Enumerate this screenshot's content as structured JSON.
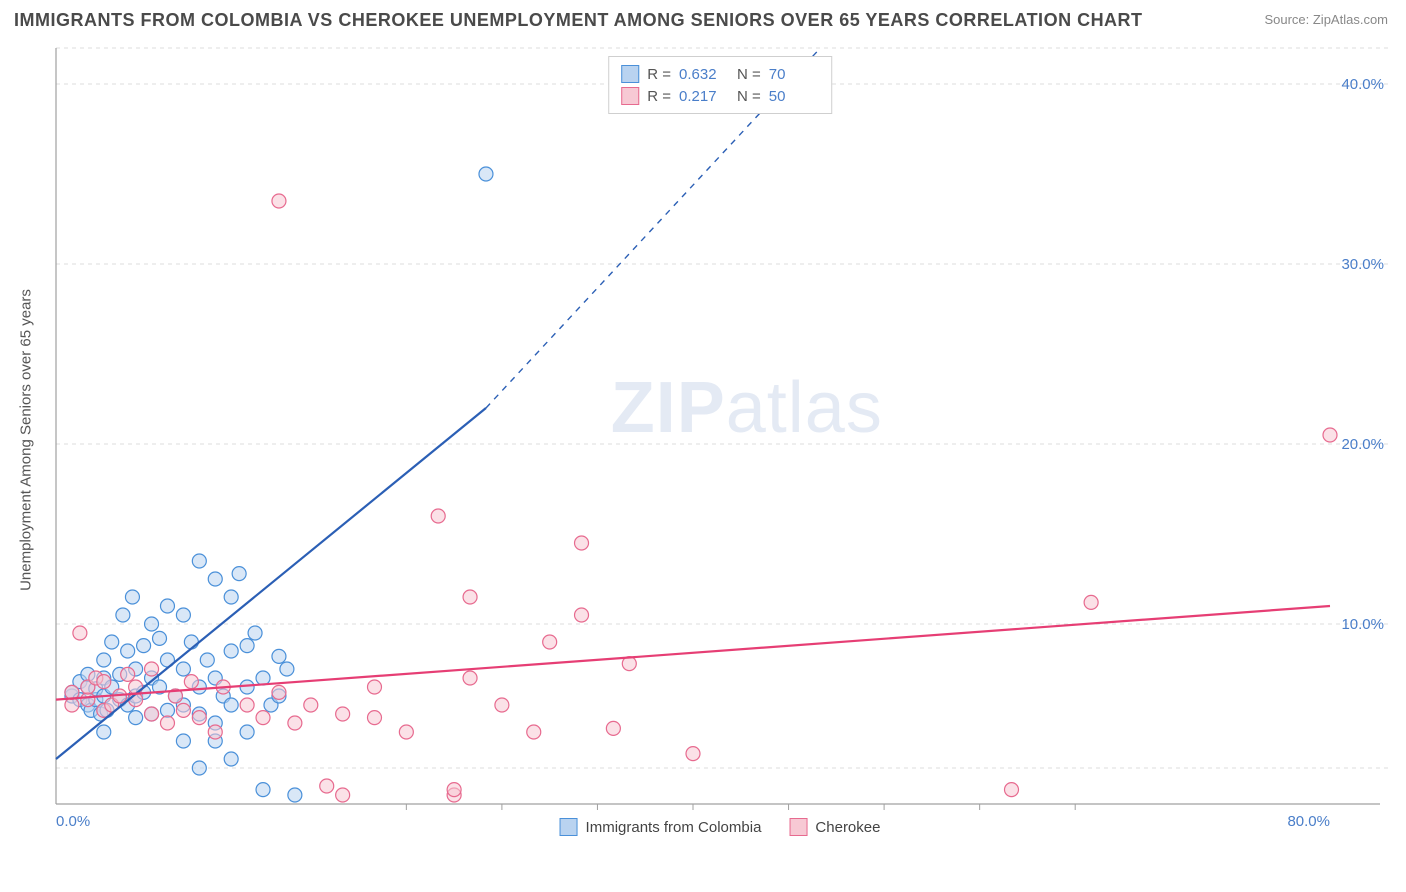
{
  "title": "IMMIGRANTS FROM COLOMBIA VS CHEROKEE UNEMPLOYMENT AMONG SENIORS OVER 65 YEARS CORRELATION CHART",
  "source_label": "Source: ZipAtlas.com",
  "ylabel": "Unemployment Among Seniors over 65 years",
  "watermark_a": "ZIP",
  "watermark_b": "atlas",
  "chart": {
    "type": "scatter",
    "xlim": [
      0,
      80
    ],
    "ylim": [
      0,
      42
    ],
    "x_ticks": [
      0,
      80
    ],
    "x_tick_labels": [
      "0.0%",
      "80.0%"
    ],
    "y_ticks": [
      10,
      20,
      30,
      40
    ],
    "y_tick_labels": [
      "10.0%",
      "20.0%",
      "30.0%",
      "40.0%"
    ],
    "grid_y": [
      2,
      10,
      20,
      30,
      40,
      42
    ],
    "grid_color": "#dcdcdc",
    "background_color": "#ffffff",
    "axis_color": "#a0a0a0",
    "tick_color": "#4a7ec9",
    "marker_radius": 7,
    "marker_stroke_width": 1.2,
    "series": [
      {
        "name": "Immigrants from Colombia",
        "fill": "#b9d3f0",
        "stroke": "#4a90d9",
        "fill_opacity": 0.55,
        "R": "0.632",
        "N": "70",
        "trend": {
          "x1": 0,
          "y1": 2.5,
          "x2": 27,
          "y2": 22,
          "dashed_to_x": 48,
          "dashed_to_y": 42,
          "color": "#2b5fb5",
          "width": 2.2
        },
        "points": [
          [
            1,
            6
          ],
          [
            1,
            6.2
          ],
          [
            1.5,
            5.8
          ],
          [
            1.5,
            6.8
          ],
          [
            2,
            5.5
          ],
          [
            2,
            6.5
          ],
          [
            2,
            7.2
          ],
          [
            2.2,
            5.2
          ],
          [
            2.5,
            5.8
          ],
          [
            2.5,
            6.4
          ],
          [
            2.8,
            5
          ],
          [
            3,
            6
          ],
          [
            3,
            7
          ],
          [
            3,
            8
          ],
          [
            3.2,
            5.2
          ],
          [
            3.5,
            6.5
          ],
          [
            3.5,
            9
          ],
          [
            4,
            5.8
          ],
          [
            4,
            7.2
          ],
          [
            4.2,
            10.5
          ],
          [
            4.5,
            5.5
          ],
          [
            4.5,
            8.5
          ],
          [
            4.8,
            11.5
          ],
          [
            5,
            4.8
          ],
          [
            5,
            6
          ],
          [
            5,
            7.5
          ],
          [
            5.5,
            6.2
          ],
          [
            5.5,
            8.8
          ],
          [
            6,
            5
          ],
          [
            6,
            7
          ],
          [
            6,
            10
          ],
          [
            6.5,
            6.5
          ],
          [
            6.5,
            9.2
          ],
          [
            7,
            5.2
          ],
          [
            7,
            8
          ],
          [
            7,
            11
          ],
          [
            7.5,
            6
          ],
          [
            8,
            3.5
          ],
          [
            8,
            5.5
          ],
          [
            8,
            7.5
          ],
          [
            8,
            10.5
          ],
          [
            8.5,
            9
          ],
          [
            9,
            5
          ],
          [
            9,
            6.5
          ],
          [
            9,
            13.5
          ],
          [
            9.5,
            8
          ],
          [
            10,
            4.5
          ],
          [
            10,
            7
          ],
          [
            10,
            12.5
          ],
          [
            10.5,
            6
          ],
          [
            11,
            5.5
          ],
          [
            11,
            8.5
          ],
          [
            11,
            11.5
          ],
          [
            11.5,
            12.8
          ],
          [
            12,
            4
          ],
          [
            12,
            6.5
          ],
          [
            12,
            8.8
          ],
          [
            12.5,
            9.5
          ],
          [
            13,
            0.8
          ],
          [
            13,
            7
          ],
          [
            13.5,
            5.5
          ],
          [
            14,
            8.2
          ],
          [
            14,
            6
          ],
          [
            14.5,
            7.5
          ],
          [
            9,
            2
          ],
          [
            11,
            2.5
          ],
          [
            15,
            0.5
          ],
          [
            10,
            3.5
          ],
          [
            27,
            35
          ],
          [
            3,
            4
          ]
        ]
      },
      {
        "name": "Cherokee",
        "fill": "#f7c9d4",
        "stroke": "#e76a8f",
        "fill_opacity": 0.55,
        "R": "0.217",
        "N": "50",
        "trend": {
          "x1": 0,
          "y1": 5.8,
          "x2": 80,
          "y2": 11,
          "color": "#e63e74",
          "width": 2.2
        },
        "points": [
          [
            1,
            5.5
          ],
          [
            1,
            6.2
          ],
          [
            1.5,
            9.5
          ],
          [
            2,
            5.8
          ],
          [
            2,
            6.5
          ],
          [
            2.5,
            7
          ],
          [
            3,
            5.2
          ],
          [
            3,
            6.8
          ],
          [
            3.5,
            5.5
          ],
          [
            4,
            6
          ],
          [
            4.5,
            7.2
          ],
          [
            5,
            5.8
          ],
          [
            5,
            6.5
          ],
          [
            6,
            5
          ],
          [
            6,
            7.5
          ],
          [
            7,
            4.5
          ],
          [
            7.5,
            6
          ],
          [
            8,
            5.2
          ],
          [
            8.5,
            6.8
          ],
          [
            9,
            4.8
          ],
          [
            10,
            4
          ],
          [
            10.5,
            6.5
          ],
          [
            12,
            5.5
          ],
          [
            13,
            4.8
          ],
          [
            14,
            6.2
          ],
          [
            14,
            33.5
          ],
          [
            15,
            4.5
          ],
          [
            16,
            5.5
          ],
          [
            17,
            1
          ],
          [
            18,
            5
          ],
          [
            18,
            0.5
          ],
          [
            20,
            4.8
          ],
          [
            20,
            6.5
          ],
          [
            22,
            4
          ],
          [
            24,
            16
          ],
          [
            25,
            0.5
          ],
          [
            25,
            0.8
          ],
          [
            26,
            7
          ],
          [
            26,
            11.5
          ],
          [
            28,
            5.5
          ],
          [
            30,
            4
          ],
          [
            31,
            9
          ],
          [
            33,
            10.5
          ],
          [
            33,
            14.5
          ],
          [
            35,
            4.2
          ],
          [
            36,
            7.8
          ],
          [
            40,
            2.8
          ],
          [
            60,
            0.8
          ],
          [
            65,
            11.2
          ],
          [
            80,
            20.5
          ]
        ]
      }
    ],
    "minor_ticks_x": [
      22,
      28,
      34,
      40,
      46,
      52,
      58,
      64
    ]
  },
  "legend_top": {
    "r_label": "R =",
    "n_label": "N ="
  },
  "legend_bottom": {
    "items": [
      "Immigrants from Colombia",
      "Cherokee"
    ]
  }
}
